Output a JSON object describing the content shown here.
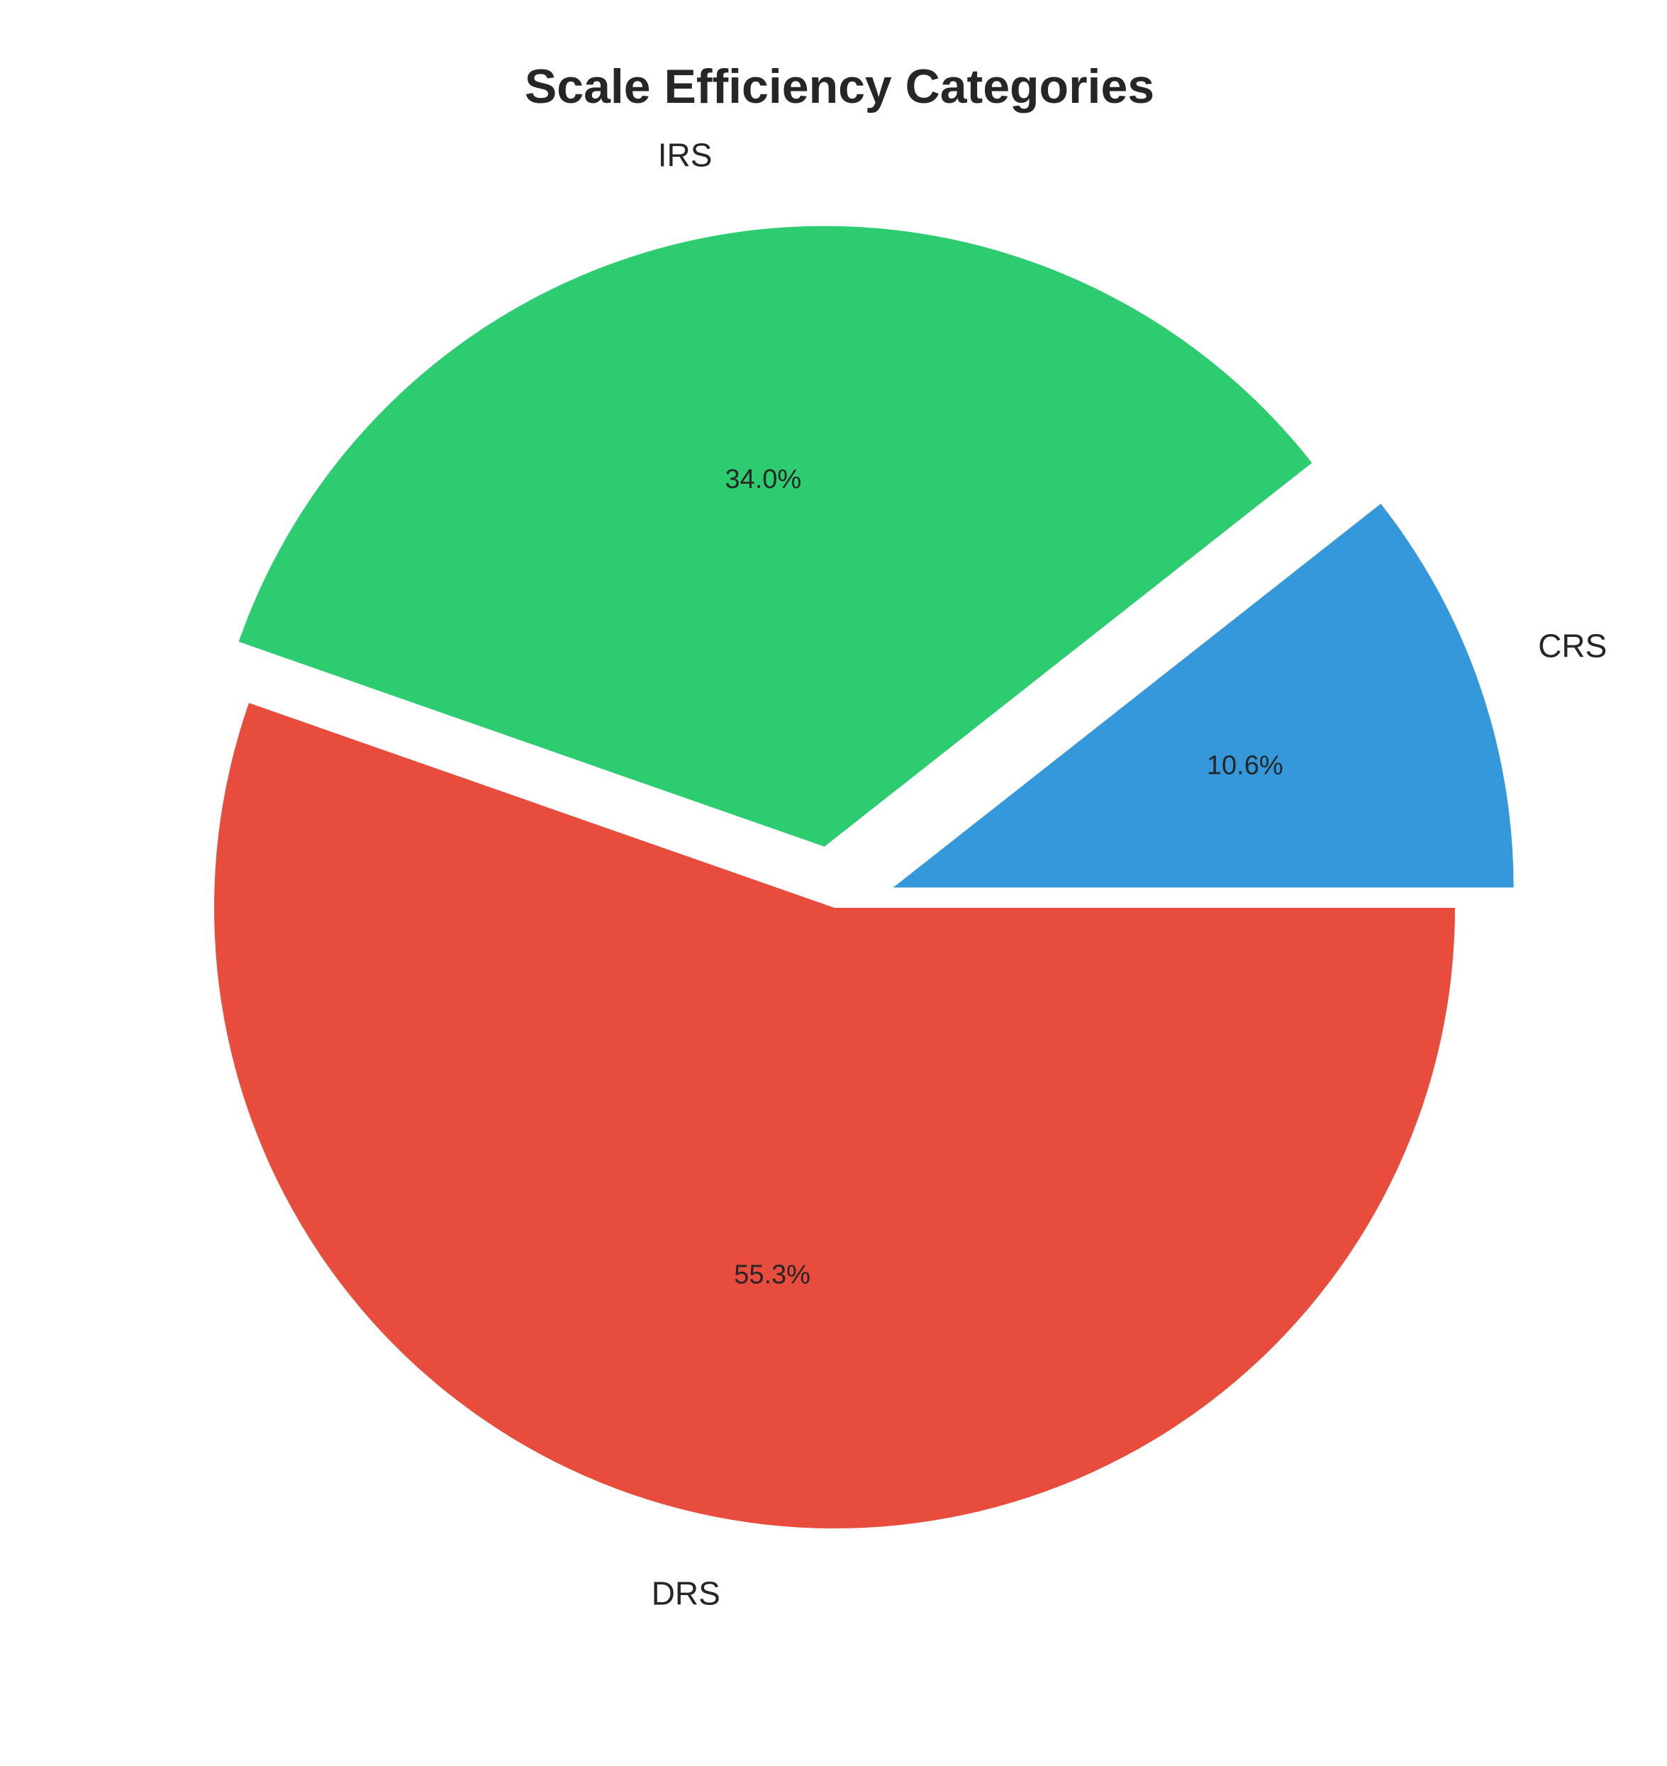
{
  "chart_data": {
    "type": "pie",
    "title": "Scale Efficiency Categories",
    "categories": [
      "DRS",
      "IRS",
      "CRS"
    ],
    "values": [
      55.3,
      34.0,
      10.6
    ],
    "percent_labels": [
      "55.3%",
      "34.0%",
      "10.6%"
    ],
    "colors": [
      "#e74c3c",
      "#2ecc71",
      "#3498db"
    ],
    "exploded": [
      false,
      true,
      true
    ],
    "start_angle_deg": 0,
    "direction": "clockwise",
    "legend": "none"
  }
}
